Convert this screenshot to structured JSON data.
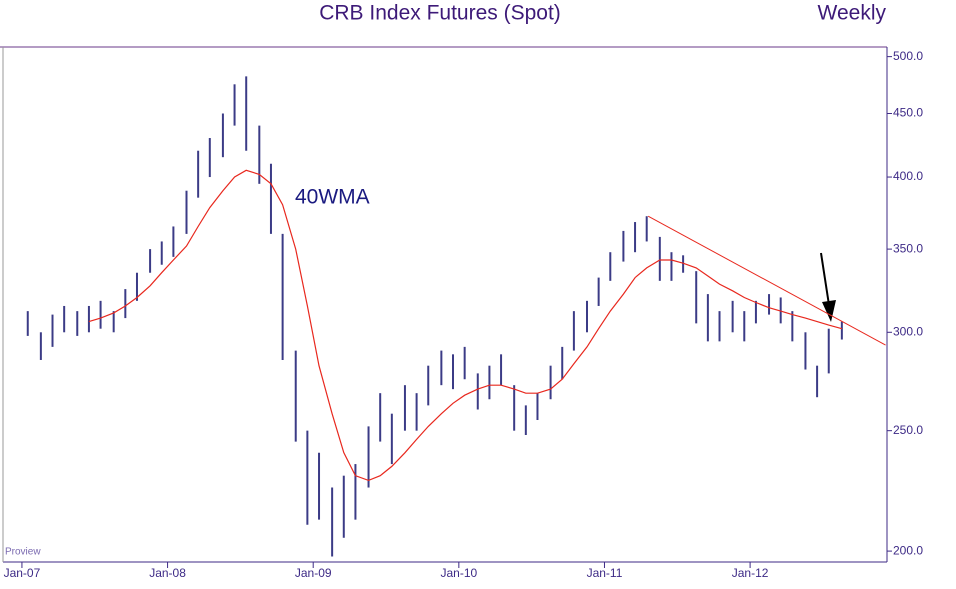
{
  "chart_data": {
    "type": "hilo",
    "title": "CRB Index Futures (Spot)",
    "subtitle": "Weekly",
    "annotations": [
      "40WMA",
      "Proview"
    ],
    "log_scale": true,
    "xlim": [
      2006.87,
      2012.94
    ],
    "ylim": [
      196,
      509
    ],
    "xticks": [
      {
        "value": 2007,
        "label": "Jan-07"
      },
      {
        "value": 2008,
        "label": "Jan-08"
      },
      {
        "value": 2009,
        "label": "Jan-09"
      },
      {
        "value": 2010,
        "label": "Jan-10"
      },
      {
        "value": 2011,
        "label": "Jan-11"
      },
      {
        "value": 2012,
        "label": "Jan-12"
      }
    ],
    "yticks": [
      {
        "value": 200,
        "label": "200.0"
      },
      {
        "value": 250,
        "label": "250.0"
      },
      {
        "value": 300,
        "label": "300.0"
      },
      {
        "value": 350,
        "label": "350.0"
      },
      {
        "value": 400,
        "label": "400.0"
      },
      {
        "value": 450,
        "label": "450.0"
      },
      {
        "value": 500,
        "label": "500.0"
      }
    ],
    "x": [
      2007.04,
      2007.13,
      2007.21,
      2007.29,
      2007.38,
      2007.46,
      2007.54,
      2007.63,
      2007.71,
      2007.79,
      2007.88,
      2007.96,
      2008.04,
      2008.13,
      2008.21,
      2008.29,
      2008.38,
      2008.46,
      2008.54,
      2008.63,
      2008.71,
      2008.79,
      2008.88,
      2008.96,
      2009.04,
      2009.13,
      2009.21,
      2009.29,
      2009.38,
      2009.46,
      2009.54,
      2009.63,
      2009.71,
      2009.79,
      2009.88,
      2009.96,
      2010.04,
      2010.13,
      2010.21,
      2010.29,
      2010.38,
      2010.46,
      2010.54,
      2010.63,
      2010.71,
      2010.79,
      2010.88,
      2010.96,
      2011.04,
      2011.13,
      2011.21,
      2011.29,
      2011.38,
      2011.46,
      2011.54,
      2011.63,
      2011.71,
      2011.79,
      2011.88,
      2011.96,
      2012.04,
      2012.13,
      2012.21,
      2012.29,
      2012.38,
      2012.46,
      2012.54,
      2012.63
    ],
    "bars": {
      "color": "#3b3b86",
      "high": [
        312,
        300,
        310,
        315,
        312,
        315,
        318,
        312,
        325,
        335,
        350,
        355,
        365,
        390,
        420,
        430,
        450,
        475,
        482,
        440,
        410,
        360,
        290,
        250,
        240,
        225,
        230,
        235,
        252,
        268,
        258,
        272,
        268,
        282,
        290,
        288,
        292,
        278,
        282,
        288,
        272,
        262,
        268,
        282,
        292,
        312,
        318,
        332,
        348,
        362,
        368,
        372,
        358,
        348,
        346,
        336,
        322,
        312,
        318,
        312,
        318,
        322,
        320,
        312,
        300,
        282,
        302,
        306
      ],
      "low": [
        298,
        285,
        292,
        300,
        298,
        300,
        302,
        300,
        308,
        318,
        335,
        340,
        345,
        360,
        385,
        400,
        415,
        440,
        420,
        395,
        360,
        285,
        245,
        210,
        212,
        198,
        205,
        212,
        225,
        245,
        235,
        250,
        250,
        262,
        272,
        270,
        275,
        260,
        265,
        272,
        250,
        248,
        255,
        265,
        275,
        290,
        300,
        315,
        330,
        342,
        348,
        355,
        330,
        330,
        335,
        305,
        295,
        295,
        300,
        295,
        305,
        310,
        305,
        295,
        280,
        266,
        278,
        296
      ]
    },
    "series": [
      {
        "color": "#e8281e",
        "values": [
          null,
          null,
          null,
          null,
          null,
          306,
          308,
          311,
          315,
          320,
          327,
          335,
          343,
          352,
          365,
          378,
          390,
          400,
          405,
          402,
          395,
          380,
          350,
          315,
          282,
          258,
          240,
          230,
          228,
          230,
          234,
          240,
          246,
          252,
          258,
          263,
          267,
          270,
          272,
          272,
          270,
          268,
          268,
          270,
          275,
          283,
          292,
          302,
          312,
          322,
          332,
          338,
          343,
          343,
          341,
          338,
          333,
          328,
          324,
          320,
          317,
          314,
          312,
          310,
          308,
          306,
          304,
          302
        ]
      }
    ],
    "trendline": {
      "color": "#e8281e",
      "x": [
        2011.3,
        2012.93
      ],
      "values": [
        372,
        293
      ]
    }
  }
}
